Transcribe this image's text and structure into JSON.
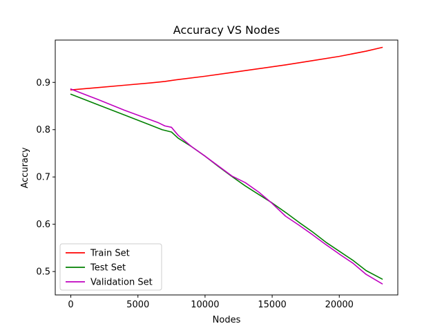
{
  "chart_data": {
    "type": "line",
    "title": "Accuracy VS Nodes",
    "xlabel": "Nodes",
    "ylabel": "Accuracy",
    "xlim": [
      -1160,
      24360
    ],
    "ylim": [
      0.4505,
      0.9895
    ],
    "xticks": [
      0,
      5000,
      10000,
      15000,
      20000
    ],
    "xtick_labels": [
      "0",
      "5000",
      "10000",
      "15000",
      "20000"
    ],
    "yticks": [
      0.5,
      0.6,
      0.7,
      0.8,
      0.9
    ],
    "ytick_labels": [
      "0.5",
      "0.6",
      "0.7",
      "0.8",
      "0.9"
    ],
    "grid": false,
    "legend_position": "lower-left",
    "series": [
      {
        "name": "Train Set",
        "color": "#ff0000",
        "x": [
          0,
          2000,
          4000,
          6000,
          7000,
          8000,
          10000,
          12000,
          14000,
          16000,
          18000,
          20000,
          22000,
          23200
        ],
        "y": [
          0.884,
          0.889,
          0.894,
          0.899,
          0.902,
          0.906,
          0.913,
          0.921,
          0.929,
          0.937,
          0.946,
          0.955,
          0.966,
          0.974
        ]
      },
      {
        "name": "Test Set",
        "color": "#008000",
        "x": [
          0,
          2000,
          4000,
          6000,
          6800,
          7500,
          8000,
          9000,
          10000,
          11000,
          12000,
          13000,
          14000,
          15000,
          16000,
          17000,
          18000,
          19000,
          20000,
          21000,
          22000,
          23200
        ],
        "y": [
          0.875,
          0.853,
          0.831,
          0.809,
          0.8,
          0.795,
          0.782,
          0.764,
          0.744,
          0.722,
          0.701,
          0.681,
          0.663,
          0.645,
          0.625,
          0.604,
          0.584,
          0.562,
          0.543,
          0.524,
          0.502,
          0.484
        ]
      },
      {
        "name": "Validation Set",
        "color": "#bf00bf",
        "x": [
          0,
          2000,
          4000,
          6500,
          7000,
          7500,
          8000,
          9000,
          10000,
          11000,
          12000,
          13000,
          14000,
          15000,
          16000,
          17000,
          18000,
          19000,
          20000,
          21000,
          22000,
          23200
        ],
        "y": [
          0.886,
          0.864,
          0.841,
          0.815,
          0.808,
          0.805,
          0.788,
          0.764,
          0.744,
          0.723,
          0.702,
          0.688,
          0.668,
          0.644,
          0.617,
          0.598,
          0.578,
          0.557,
          0.537,
          0.518,
          0.494,
          0.474
        ]
      }
    ]
  }
}
